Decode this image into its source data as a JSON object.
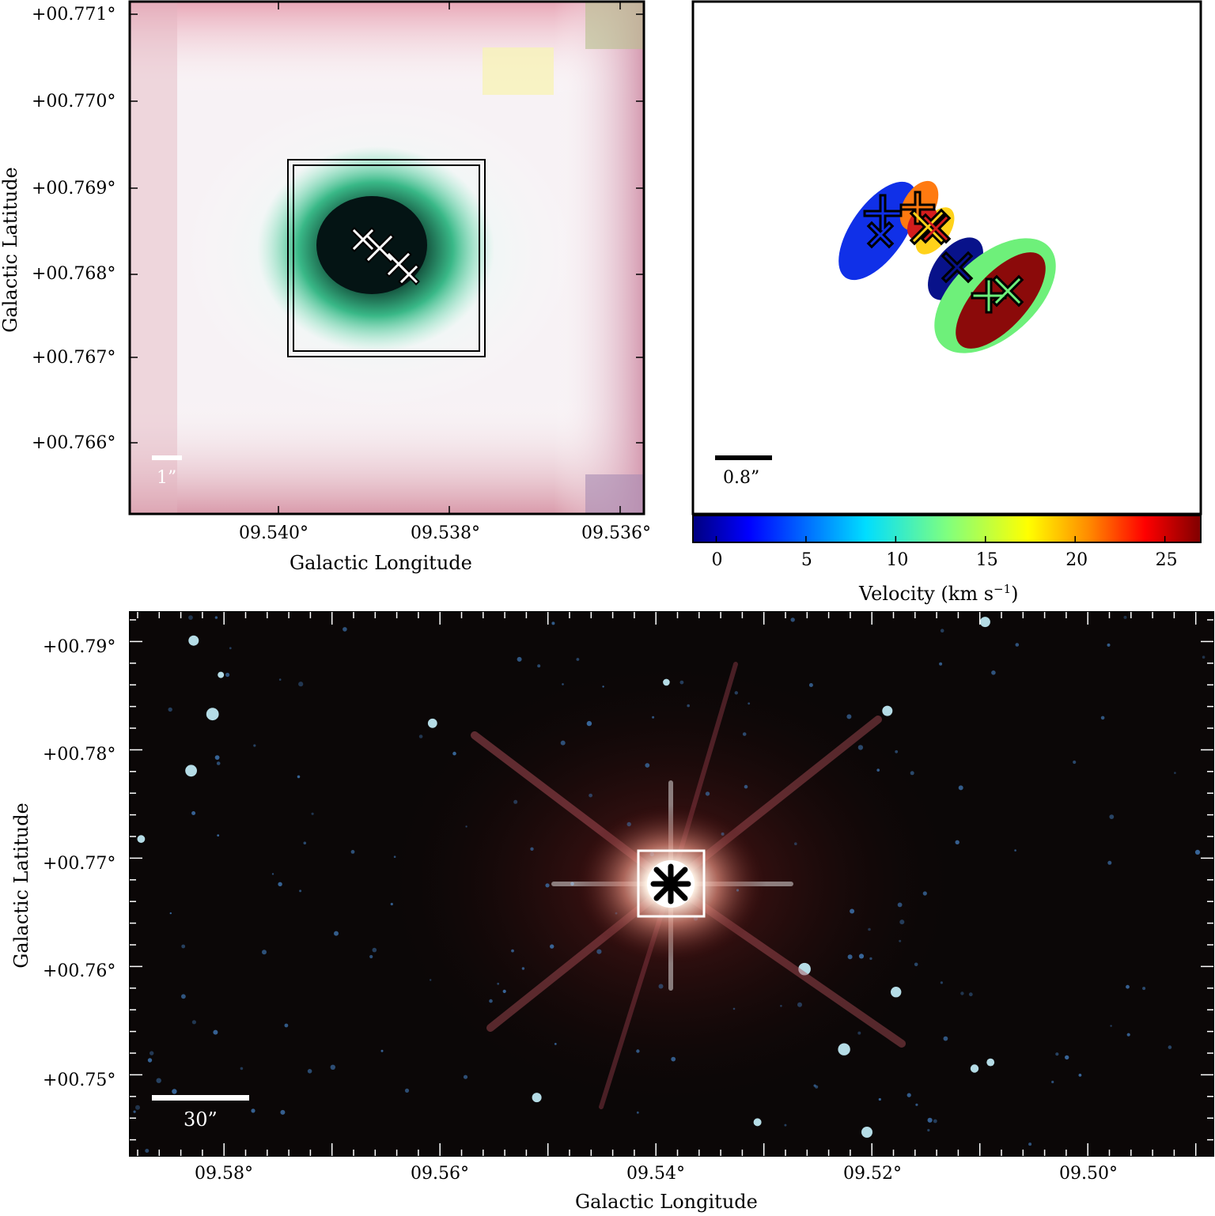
{
  "top_left": {
    "y_ticks": [
      "+00.771°",
      "+00.770°",
      "+00.769°",
      "+00.768°",
      "+00.767°",
      "+00.766°"
    ],
    "x_ticks": [
      "09.540°",
      "09.538°",
      "09.536°"
    ],
    "xlabel": "Galactic Longitude",
    "ylabel": "Galactic Latitude",
    "scalebar_label": "1”"
  },
  "top_right": {
    "scalebar_label": "0.8”",
    "colorbar_ticks": [
      "0",
      "5",
      "10",
      "15",
      "20",
      "25"
    ],
    "colorbar_label": "Velocity (km s",
    "colorbar_label_sup": "−1",
    "colorbar_label_end": ")",
    "colorbar_range": [
      -1.3,
      27
    ],
    "components": [
      {
        "color": "#1030e8",
        "velocity": 1
      },
      {
        "color": "#ff7a10",
        "velocity": 21
      },
      {
        "color": "#ffd21a",
        "velocity": 18
      },
      {
        "color": "#d41d1d",
        "velocity": 24
      },
      {
        "color": "#08128a",
        "velocity": 0
      },
      {
        "color": "#6ef07a",
        "velocity": 12
      },
      {
        "color": "#8b0a0a",
        "velocity": 26
      }
    ]
  },
  "bottom": {
    "y_ticks": [
      "+00.79°",
      "+00.78°",
      "+00.77°",
      "+00.76°",
      "+00.75°"
    ],
    "x_ticks": [
      "09.58°",
      "09.56°",
      "09.54°",
      "09.52°",
      "09.50°"
    ],
    "xlabel": "Galactic Longitude",
    "ylabel": "Galactic Latitude",
    "scalebar_label": "30”"
  },
  "colors": {
    "cmap": [
      "#00007f",
      "#0000ff",
      "#007fff",
      "#00ffff",
      "#7fff7f",
      "#ffff00",
      "#ff7f00",
      "#ff0000",
      "#7f0000"
    ]
  }
}
